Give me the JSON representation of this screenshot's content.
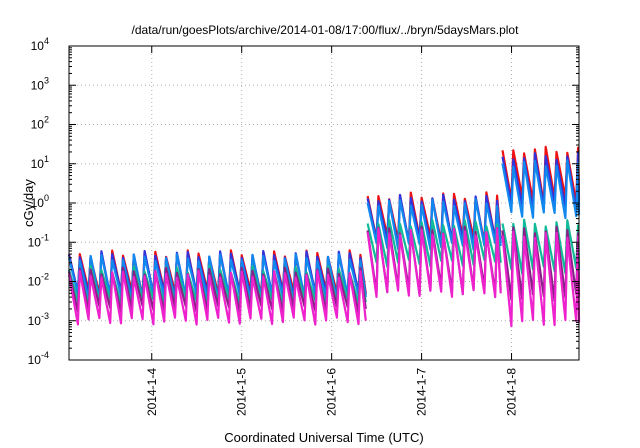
{
  "chart_data": {
    "type": "line",
    "title": "/data/run/goesPlots/archive/2014-01-08/17:00/flux/../bryn/5daysMars.plot",
    "xlabel": "Coordinated Universal Time (UTC)",
    "ylabel": "cGy/day",
    "yscale": "log",
    "ylim": [
      0.0001,
      10000
    ],
    "ytick_base": "10",
    "ytick_exponents": [
      "-4",
      "-3",
      "-2",
      "-1",
      "0",
      "1",
      "2",
      "3",
      "4"
    ],
    "xlim": [
      3.08,
      8.75
    ],
    "xticks": [
      {
        "value": 4,
        "label": "2014-1-4"
      },
      {
        "value": 5,
        "label": "2014-1-5"
      },
      {
        "value": 6,
        "label": "2014-1-6"
      },
      {
        "value": 7,
        "label": "2014-1-7"
      },
      {
        "value": 8,
        "label": "2014-1-8"
      }
    ],
    "grid": true,
    "legend": "none",
    "pulse_period_days": 0.12,
    "segments": [
      {
        "x_start": 3.08,
        "x_end": 6.38
      },
      {
        "x_start": 6.4,
        "x_end": 7.88
      },
      {
        "x_start": 7.9,
        "x_end": 8.75
      }
    ],
    "series": [
      {
        "color": "#ee1111",
        "peak": [
          0.05,
          1.5,
          22
        ],
        "trough": [
          0.005,
          0.12,
          1.2
        ]
      },
      {
        "color": "#3333dd",
        "peak": [
          0.048,
          1.3,
          15
        ],
        "trough": [
          0.0045,
          0.1,
          0.8
        ]
      },
      {
        "color": "#1188ee",
        "peak": [
          0.04,
          1.0,
          10
        ],
        "trough": [
          0.004,
          0.08,
          0.5
        ]
      },
      {
        "color": "#11bb99",
        "peak": [
          0.02,
          0.3,
          0.3
        ],
        "trough": [
          0.003,
          0.03,
          0.02
        ]
      },
      {
        "color": "#882288",
        "peak": [
          0.018,
          0.2,
          0.2
        ],
        "trough": [
          0.002,
          0.006,
          0.004
        ]
      },
      {
        "color": "#ee22cc",
        "peak": [
          0.015,
          0.18,
          0.15
        ],
        "trough": [
          0.001,
          0.005,
          0.0009
        ]
      }
    ]
  }
}
